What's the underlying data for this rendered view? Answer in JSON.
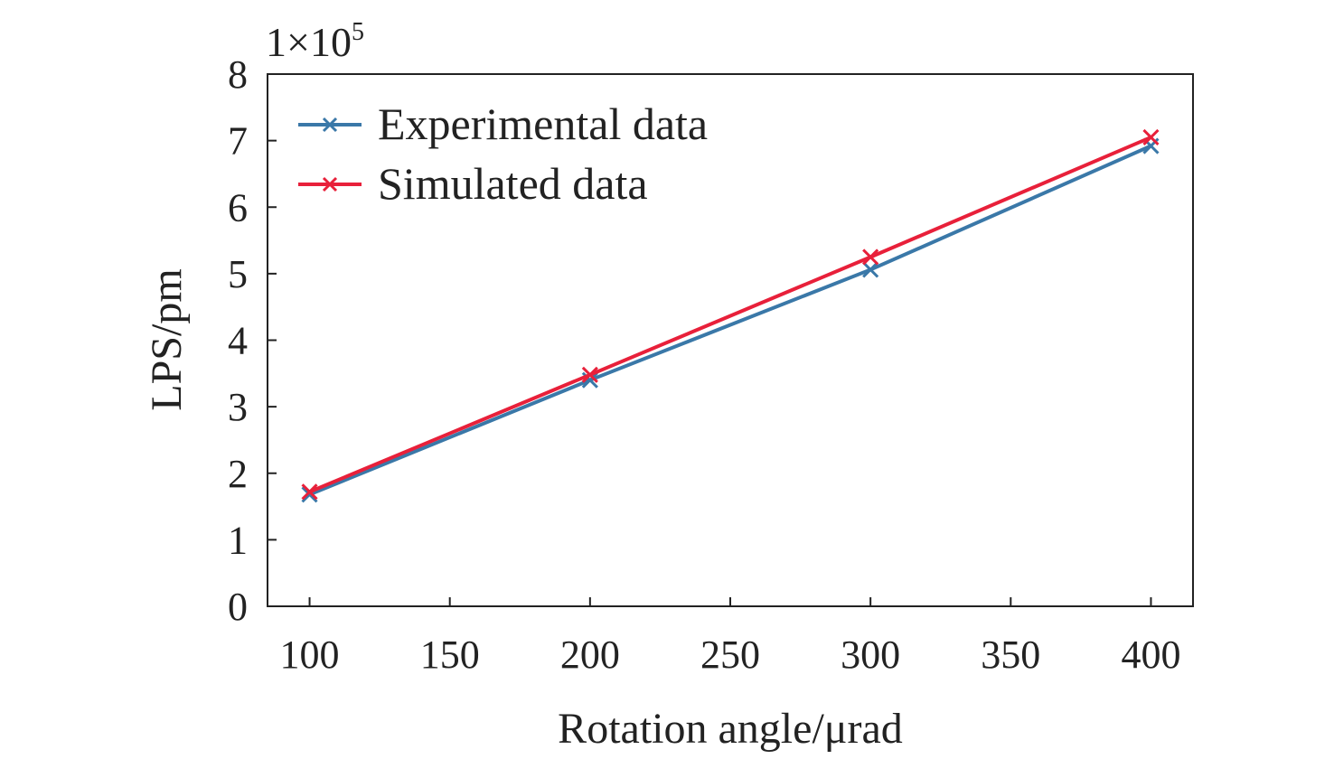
{
  "chart_data": {
    "type": "line",
    "xlabel": "Rotation angle/μrad",
    "ylabel": "LPS/pm",
    "y_multiplier": {
      "base": "1×10",
      "exponent": "5"
    },
    "xlim": [
      85,
      415
    ],
    "ylim": [
      0,
      8
    ],
    "xticks": [
      100,
      150,
      200,
      250,
      300,
      350,
      400
    ],
    "yticks": [
      0,
      1,
      2,
      3,
      4,
      5,
      6,
      7,
      8
    ],
    "grid": false,
    "legend_position": "top-left",
    "x": [
      100,
      200,
      300,
      400
    ],
    "series": [
      {
        "name": "Experimental data",
        "color": "#3a78a8",
        "marker": "x",
        "values": [
          1.68,
          3.4,
          5.06,
          6.92
        ]
      },
      {
        "name": "Simulated data",
        "color": "#e8203a",
        "marker": "x",
        "values": [
          1.72,
          3.48,
          5.25,
          7.05
        ]
      }
    ]
  }
}
